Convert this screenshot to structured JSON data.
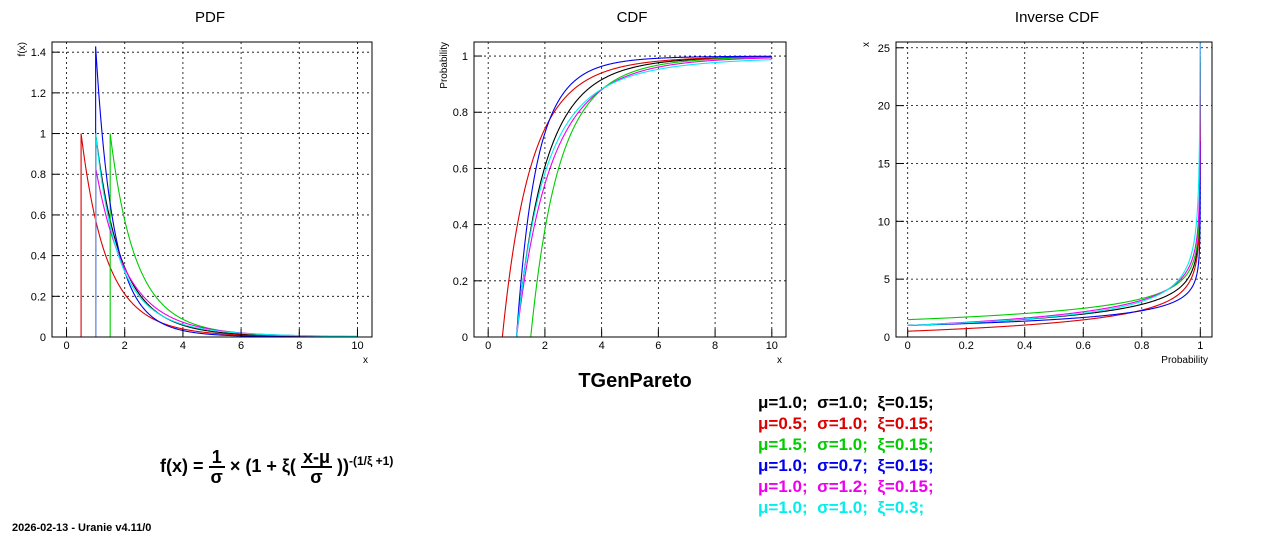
{
  "chart_data": [
    {
      "type": "line",
      "title": "PDF",
      "xlabel": "x",
      "ylabel": "f(x)",
      "xlim": [
        -0.5,
        10.5
      ],
      "ylim": [
        0,
        1.45
      ],
      "x_ticks": [
        "0",
        "2",
        "4",
        "6",
        "8",
        "10"
      ],
      "y_ticks": [
        "0",
        "0.2",
        "0.4",
        "0.6",
        "0.8",
        "1",
        "1.2",
        "1.4"
      ],
      "grid": true,
      "curve": "pdf",
      "x_range": [
        0,
        10
      ]
    },
    {
      "type": "line",
      "title": "CDF",
      "xlabel": "x",
      "ylabel": "Probability",
      "xlim": [
        -0.5,
        10.5
      ],
      "ylim": [
        0,
        1.05
      ],
      "x_ticks": [
        "0",
        "2",
        "4",
        "6",
        "8",
        "10"
      ],
      "y_ticks": [
        "0",
        "0.2",
        "0.4",
        "0.6",
        "0.8",
        "1"
      ],
      "grid": true,
      "curve": "cdf",
      "x_range": [
        0,
        10
      ]
    },
    {
      "type": "line",
      "title": "Inverse CDF",
      "xlabel": "Probability",
      "ylabel": "x",
      "xlim": [
        -0.04,
        1.04
      ],
      "ylim": [
        0,
        25.5
      ],
      "x_ticks": [
        "0",
        "0.2",
        "0.4",
        "0.6",
        "0.8",
        "1"
      ],
      "y_ticks": [
        "0",
        "5",
        "10",
        "15",
        "20",
        "25"
      ],
      "grid": true,
      "curve": "inverse",
      "x_range": [
        0,
        1
      ]
    }
  ],
  "series": [
    {
      "mu": 1.0,
      "sigma": 1.0,
      "xi": 0.15,
      "color": "#000000"
    },
    {
      "mu": 0.5,
      "sigma": 1.0,
      "xi": 0.15,
      "color": "#dd0000"
    },
    {
      "mu": 1.5,
      "sigma": 1.0,
      "xi": 0.15,
      "color": "#00cc00"
    },
    {
      "mu": 1.0,
      "sigma": 0.7,
      "xi": 0.15,
      "color": "#0000ee"
    },
    {
      "mu": 1.0,
      "sigma": 1.2,
      "xi": 0.15,
      "color": "#ee00ee"
    },
    {
      "mu": 1.0,
      "sigma": 1.0,
      "xi": 0.3,
      "color": "#00eeee"
    }
  ],
  "main_title": "TGenPareto",
  "legend": [
    "μ=1.0;  σ=1.0;  ξ=0.15;",
    "μ=0.5;  σ=1.0;  ξ=0.15;",
    "μ=1.5;  σ=1.0;  ξ=0.15;",
    "μ=1.0;  σ=0.7;  ξ=0.15;",
    "μ=1.0;  σ=1.2;  ξ=0.15;",
    "μ=1.0;  σ=1.0;  ξ=0.3;"
  ],
  "formula": {
    "lhs": "f(x) =",
    "frac1_num": "1",
    "frac1_den": "σ",
    "mid": "× (1 + ξ(",
    "frac2_num": "x-μ",
    "frac2_den": "σ",
    "close": "))",
    "exponent": "-(1/ξ +1)"
  },
  "footer": "2026-02-13 - Uranie v4.11/0"
}
